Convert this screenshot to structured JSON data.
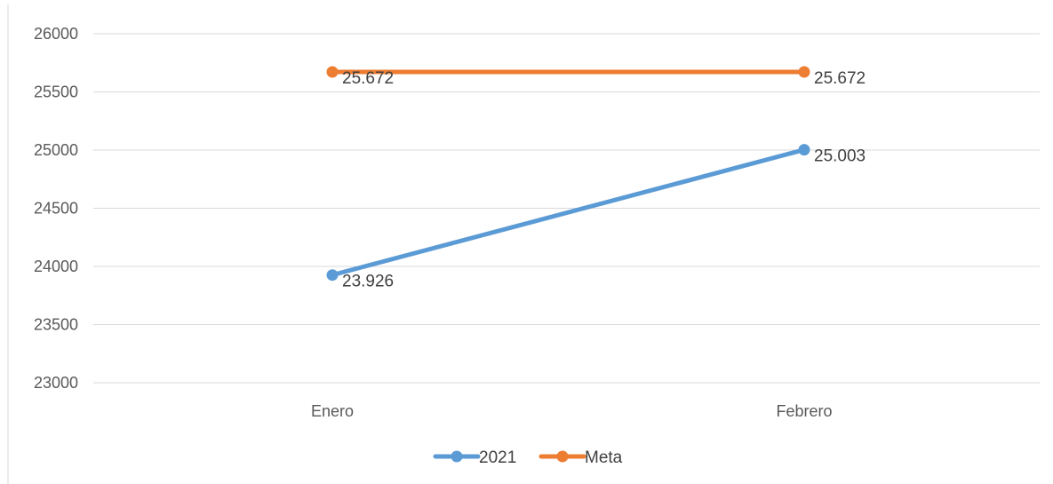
{
  "chart_data": {
    "type": "line",
    "categories": [
      "Enero",
      "Febrero"
    ],
    "series": [
      {
        "name": "2021",
        "values": [
          23926,
          25003
        ],
        "labels": [
          "23.926",
          "25.003"
        ],
        "color": "#5b9bd5"
      },
      {
        "name": "Meta",
        "values": [
          25672,
          25672
        ],
        "labels": [
          "25.672",
          "25.672"
        ],
        "color": "#ed7d31"
      }
    ],
    "ylim": [
      23000,
      26000
    ],
    "yticks": [
      23000,
      23500,
      24000,
      24500,
      25000,
      25500,
      26000
    ],
    "ytick_labels": [
      "23000",
      "23500",
      "24000",
      "24500",
      "25000",
      "25500",
      "26000"
    ],
    "grid": true,
    "legend_position": "bottom",
    "title": "",
    "xlabel": "",
    "ylabel": ""
  }
}
